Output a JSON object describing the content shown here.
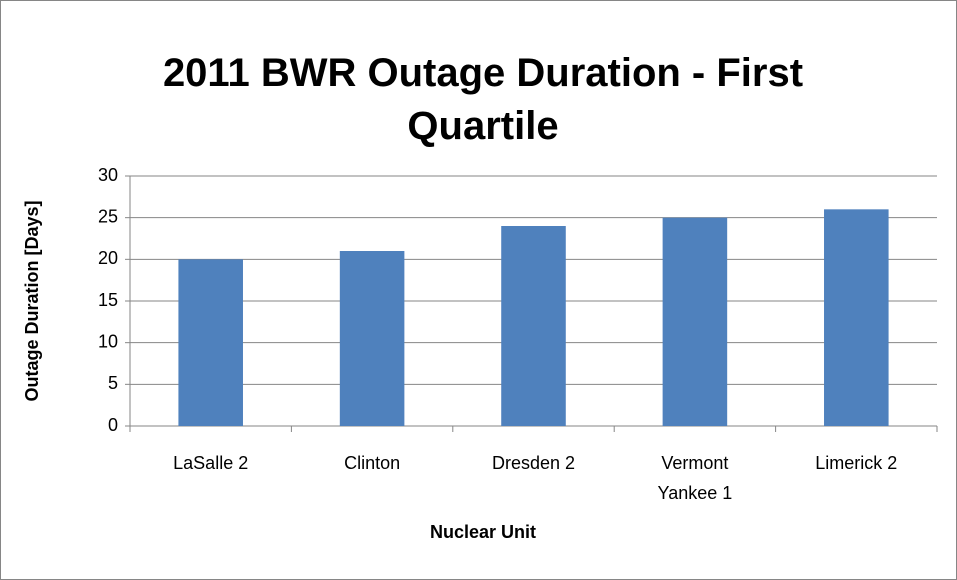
{
  "chart_data": {
    "type": "bar",
    "title": "2011 BWR Outage Duration - First Quartile",
    "x_label": "Nuclear Unit",
    "y_label": "Outage Duration [Days]",
    "categories": [
      "LaSalle 2",
      "Clinton",
      "Dresden 2",
      "Vermont Yankee 1",
      "Limerick 2"
    ],
    "values": [
      20,
      21,
      24,
      25,
      26
    ],
    "color": "#4f81bd",
    "ylim": [
      0,
      30
    ],
    "yticks": [
      0,
      5,
      10,
      15,
      20,
      25,
      30
    ],
    "grid": true
  }
}
